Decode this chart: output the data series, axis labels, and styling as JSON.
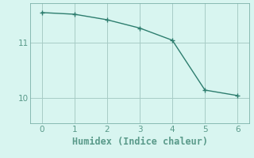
{
  "x": [
    0,
    1,
    2,
    3,
    4,
    5,
    6
  ],
  "y": [
    11.55,
    11.52,
    11.42,
    11.27,
    11.05,
    10.15,
    10.05
  ],
  "line_color": "#2d7d6e",
  "marker_color": "#2d7d6e",
  "bg_color": "#d8f5f0",
  "grid_color": "#a8ccc6",
  "axis_color": "#5a9a8a",
  "spine_color": "#7ab0a8",
  "xlabel": "Humidex (Indice chaleur)",
  "xlabel_fontsize": 8.5,
  "tick_fontsize": 7.5,
  "xlim": [
    -0.35,
    6.35
  ],
  "ylim": [
    9.55,
    11.72
  ],
  "yticks": [
    10,
    11
  ],
  "xticks": [
    0,
    1,
    2,
    3,
    4,
    5,
    6
  ]
}
